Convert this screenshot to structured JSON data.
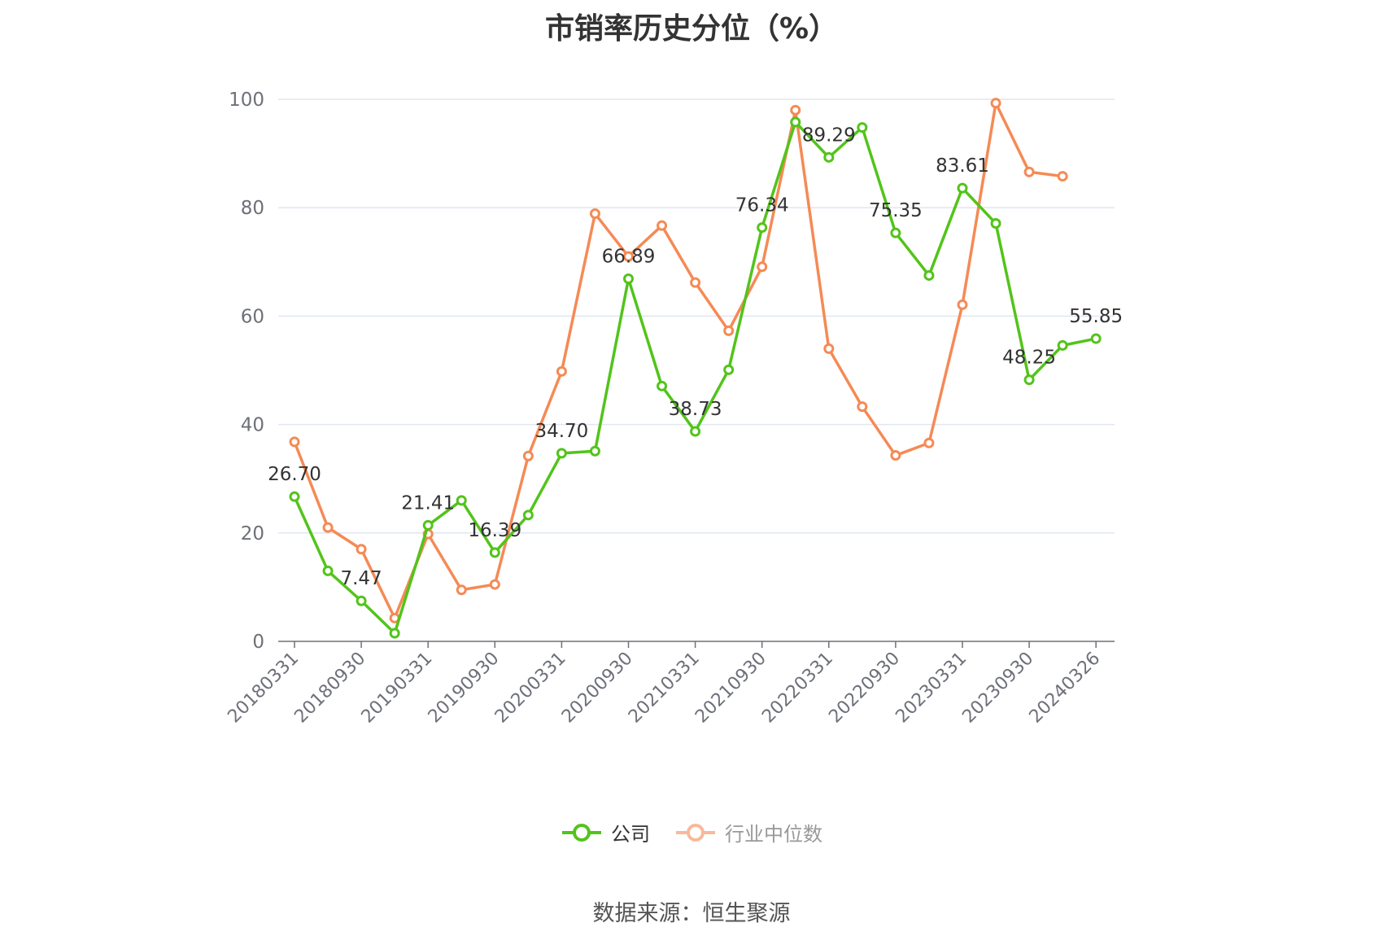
{
  "chart_data": {
    "type": "line",
    "title": "市销率历史分位（%）",
    "source": "数据来源：恒生聚源",
    "ylim": [
      0,
      100
    ],
    "y_ticks": [
      0,
      20,
      40,
      60,
      80,
      100
    ],
    "x_tick_labels": [
      "20180331",
      "20180930",
      "20190331",
      "20190930",
      "20200331",
      "20200930",
      "20210331",
      "20210930",
      "20220331",
      "20220930",
      "20230331",
      "20230930",
      "20240326"
    ],
    "grid": true,
    "legend_position": "bottom",
    "x": [
      "20180331",
      "20180630",
      "20180930",
      "20181231",
      "20190331",
      "20190630",
      "20190930",
      "20191231",
      "20200331",
      "20200630",
      "20200930",
      "20201231",
      "20210331",
      "20210630",
      "20210930",
      "20211231",
      "20220331",
      "20220630",
      "20220930",
      "20221231",
      "20230331",
      "20230630",
      "20230930",
      "20231231",
      "20240326"
    ],
    "series": [
      {
        "name": "公司",
        "color": "#52c41a",
        "values": [
          26.7,
          13.0,
          7.47,
          1.5,
          21.41,
          26.0,
          16.39,
          23.3,
          34.7,
          35.1,
          66.89,
          47.1,
          38.73,
          50.1,
          76.34,
          95.8,
          89.29,
          94.8,
          75.35,
          67.5,
          83.61,
          77.1,
          48.25,
          54.6,
          55.85
        ],
        "labels": {
          "0": "26.70",
          "2": "7.47",
          "4": "21.41",
          "6": "16.39",
          "8": "34.70",
          "10": "66.89",
          "12": "38.73",
          "14": "76.34",
          "16": "89.29",
          "18": "75.35",
          "20": "83.61",
          "22": "48.25",
          "24": "55.85"
        }
      },
      {
        "name": "行业中位数",
        "color": "#f58a55",
        "values": [
          36.8,
          21.0,
          17.0,
          4.3,
          19.8,
          9.5,
          10.5,
          34.2,
          49.8,
          78.9,
          71.0,
          76.7,
          66.2,
          57.3,
          69.1,
          98.0,
          54.0,
          43.3,
          34.3,
          36.6,
          62.1,
          99.3,
          86.6,
          85.8,
          null
        ]
      }
    ]
  }
}
